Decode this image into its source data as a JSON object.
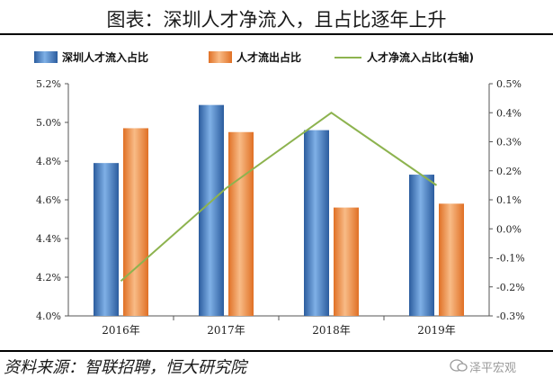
{
  "header": {
    "title": "图表：深圳人才净流入，且占比逐年上升"
  },
  "footer": {
    "source": "资料来源：智联招聘，恒大研究院",
    "watermark": "泽平宏观"
  },
  "colors": {
    "inflow": "#3f78bf",
    "outflow": "#ec8a45",
    "net": "#8db34f"
  },
  "chart_data": {
    "type": "bar",
    "title": "",
    "categories": [
      "2016年",
      "2017年",
      "2018年",
      "2019年"
    ],
    "series": [
      {
        "name": "深圳人才流入占比",
        "type": "bar",
        "axis": "left",
        "values": [
          4.79,
          5.09,
          4.96,
          4.73
        ]
      },
      {
        "name": "人才流出占比",
        "type": "bar",
        "axis": "left",
        "values": [
          4.97,
          4.95,
          4.56,
          4.58
        ]
      },
      {
        "name": "人才净流入占比(右轴)",
        "type": "line",
        "axis": "right",
        "values": [
          -0.18,
          0.14,
          0.4,
          0.15
        ]
      }
    ],
    "y_left": {
      "min": 4.0,
      "max": 5.2,
      "step": 0.2,
      "ticks": [
        "4.0%",
        "4.2%",
        "4.4%",
        "4.6%",
        "4.8%",
        "5.0%",
        "5.2%"
      ]
    },
    "y_right": {
      "min": -0.3,
      "max": 0.5,
      "step": 0.1,
      "ticks": [
        "-0.3%",
        "-0.2%",
        "-0.1%",
        "0.0%",
        "0.1%",
        "0.2%",
        "0.3%",
        "0.4%",
        "0.5%"
      ]
    },
    "xlabel": "",
    "ylabel": "",
    "legend": "top",
    "grid": false
  }
}
